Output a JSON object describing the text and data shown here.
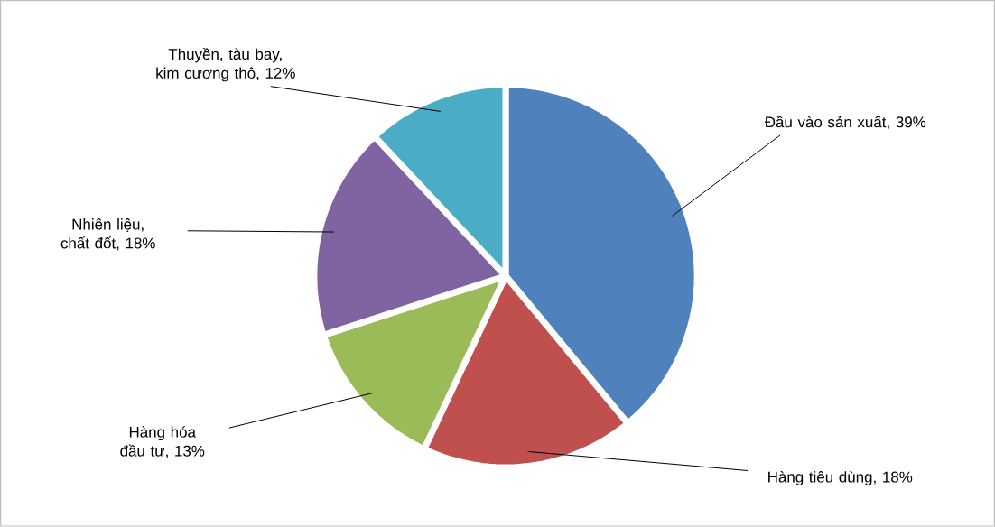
{
  "chart_data": {
    "type": "pie",
    "categories": [
      "Đầu vào sản xuất",
      "Hàng tiêu dùng",
      "Hàng hóa đầu tư",
      "Nhiên liệu, chất đốt",
      "Thuyền, tàu bay, kim cương thô"
    ],
    "values": [
      39,
      18,
      13,
      18,
      12
    ],
    "value_labels": [
      ", 39%",
      ", 18%",
      ", 13%",
      ", 18%",
      ", 12%"
    ],
    "colors": [
      "#4f81bd",
      "#c0504d",
      "#9bbb59",
      "#8064a2",
      "#4bacc6"
    ]
  }
}
